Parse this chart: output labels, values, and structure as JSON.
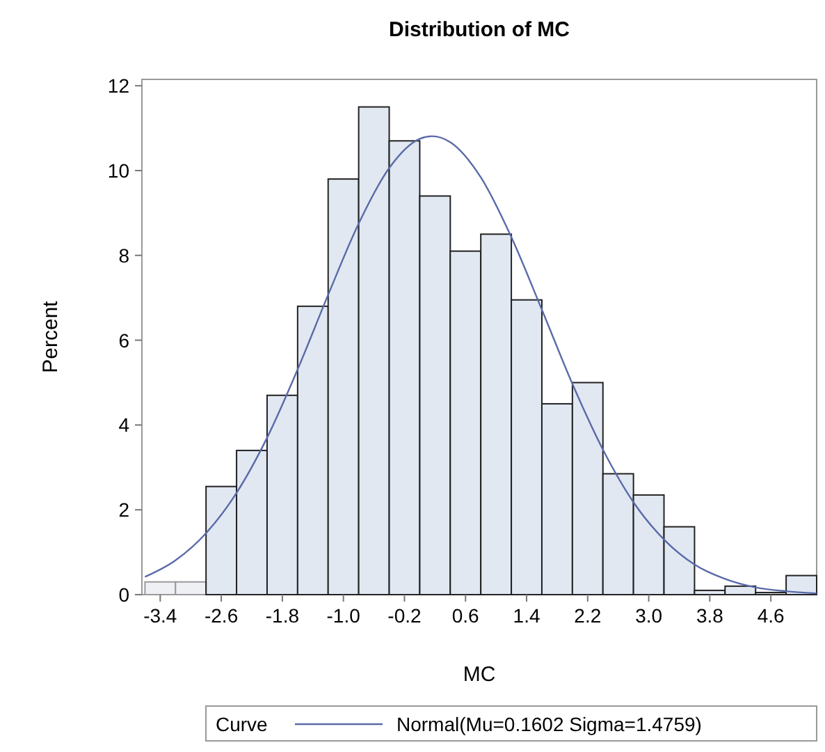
{
  "chart_data": {
    "type": "histogram",
    "title": "Distribution of MC",
    "xlabel": "MC",
    "ylabel": "Percent",
    "legend_title": "Curve",
    "legend": "bottom",
    "grid": false,
    "xlim": [
      -3.64,
      5.2
    ],
    "xticks": [
      -3.4,
      -2.6,
      -1.8,
      {
        "value": -1,
        "label": "-1.0"
      },
      -0.2,
      0.6,
      1.4,
      2.2,
      {
        "value": 3,
        "label": "3.0"
      },
      3.8,
      4.6
    ],
    "ylim": [
      0,
      12.15
    ],
    "yticks": [
      0,
      2,
      4,
      6,
      8,
      10,
      12
    ],
    "series": [
      {
        "type": "histogram",
        "bins": [
          -3.6,
          -3.2,
          -2.8,
          -2.4,
          -2.0,
          -1.6,
          -1.2,
          -0.8,
          -0.4,
          0,
          0.4,
          0.8,
          1.2,
          1.6,
          2.0,
          2.4,
          2.8,
          3.2,
          3.6,
          4.0,
          4.4,
          4.8,
          5.2
        ],
        "values": [
          0.3,
          0.3,
          2.55,
          3.4,
          4.7,
          6.8,
          9.8,
          11.5,
          10.7,
          9.4,
          8.1,
          8.5,
          6.95,
          4.5,
          5.0,
          2.85,
          2.35,
          1.6,
          0.1,
          0.2,
          0.05,
          0.45
        ],
        "colors": [
          "#eef0f4",
          "#eef0f4",
          "#e1e8f2",
          "#e1e8f2",
          "#e1e8f2",
          "#e1e8f2",
          "#e1e8f2",
          "#e1e8f2",
          "#e1e8f2",
          "#e1e8f2",
          "#e1e8f2",
          "#e1e8f2",
          "#e1e8f2",
          "#e1e8f2",
          "#e1e8f2",
          "#e1e8f2",
          "#e1e8f2",
          "#e1e8f2",
          "#e1e8f2",
          "#e1e8f2",
          "#e1e8f2",
          "#e1e8f2"
        ]
      },
      {
        "type": "line",
        "name": "Normal(Mu=0.1602 Sigma=1.4759)",
        "color": "#5a6aa8",
        "x": [
          -3.6,
          -3.2,
          -2.8,
          -2.4,
          -2.0,
          -1.6,
          -1.2,
          -0.8,
          -0.4,
          0,
          0.16,
          0.4,
          0.8,
          1.2,
          1.6,
          2.0,
          2.4,
          2.8,
          3.2,
          3.6,
          4.0,
          4.4,
          4.8,
          5.2
        ],
        "values": [
          0.42,
          0.81,
          1.45,
          2.4,
          3.7,
          5.31,
          7.07,
          8.75,
          10.06,
          10.75,
          10.81,
          10.67,
          9.84,
          8.43,
          6.72,
          4.97,
          3.42,
          2.18,
          1.3,
          0.71,
          0.37,
          0.17,
          0.08,
          0.03
        ]
      }
    ]
  }
}
